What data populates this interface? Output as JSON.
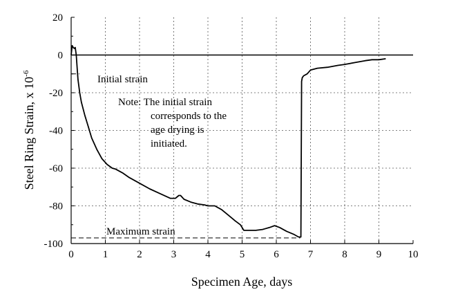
{
  "chart_data": {
    "type": "line",
    "title": "",
    "xlabel": "Specimen Age, days",
    "ylabel": "Steel Ring Strain, x 10",
    "ylabel_exponent": "-6",
    "xlim": [
      0,
      10
    ],
    "ylim": [
      -100,
      20
    ],
    "x_ticks": [
      0,
      1,
      2,
      3,
      4,
      5,
      6,
      7,
      8,
      9,
      10
    ],
    "y_ticks": [
      20,
      0,
      -20,
      -40,
      -60,
      -80,
      -100
    ],
    "grid": true,
    "zero_line": true,
    "series": [
      {
        "name": "Steel ring strain",
        "color": "#000000",
        "x": [
          0.0,
          0.03,
          0.06,
          0.09,
          0.12,
          0.15,
          0.18,
          0.2,
          0.25,
          0.3,
          0.4,
          0.5,
          0.6,
          0.75,
          0.9,
          1.05,
          1.2,
          1.3,
          1.5,
          1.7,
          2.0,
          2.3,
          2.6,
          2.9,
          3.05,
          3.15,
          3.2,
          3.3,
          3.5,
          3.7,
          3.9,
          4.0,
          4.2,
          4.4,
          4.6,
          4.8,
          4.95,
          5.05,
          5.2,
          5.4,
          5.6,
          5.8,
          5.95,
          6.1,
          6.3,
          6.5,
          6.65,
          6.72,
          6.74,
          6.76,
          6.8,
          6.9,
          7.0,
          7.2,
          7.5,
          7.8,
          8.0,
          8.3,
          8.6,
          8.8,
          9.0,
          9.2
        ],
        "y": [
          0,
          5,
          4,
          3.5,
          4,
          0,
          -8,
          -13,
          -20,
          -25,
          -32,
          -38,
          -44,
          -50,
          -55,
          -58,
          -60,
          -60.5,
          -62.5,
          -65,
          -68,
          -71,
          -73.5,
          -76,
          -76,
          -74.5,
          -74.5,
          -76.5,
          -78,
          -79,
          -79.5,
          -80,
          -80,
          -82,
          -85,
          -88,
          -90,
          -93,
          -93,
          -93,
          -92.5,
          -91.5,
          -90.5,
          -91.5,
          -93.5,
          -95,
          -96.5,
          -96.5,
          -14,
          -12,
          -11,
          -10,
          -8,
          -7,
          -6.5,
          -5.5,
          -5,
          -4,
          -3,
          -2.5,
          -2.5,
          -2
        ]
      }
    ],
    "annotations": [
      {
        "text": "Initial strain",
        "at": [
          0,
          -10
        ]
      },
      {
        "text": "Maximum strain",
        "at": [
          0,
          -97
        ]
      },
      {
        "text": "Note:  The initial strain corresponds to the age drying is initiated."
      }
    ]
  },
  "annotations": {
    "initial_strain": "Initial strain",
    "maximum_strain": "Maximum strain",
    "note_line1": "Note:  The initial strain",
    "note_line2": "corresponds to the",
    "note_line3": "age drying is",
    "note_line4": "initiated."
  }
}
